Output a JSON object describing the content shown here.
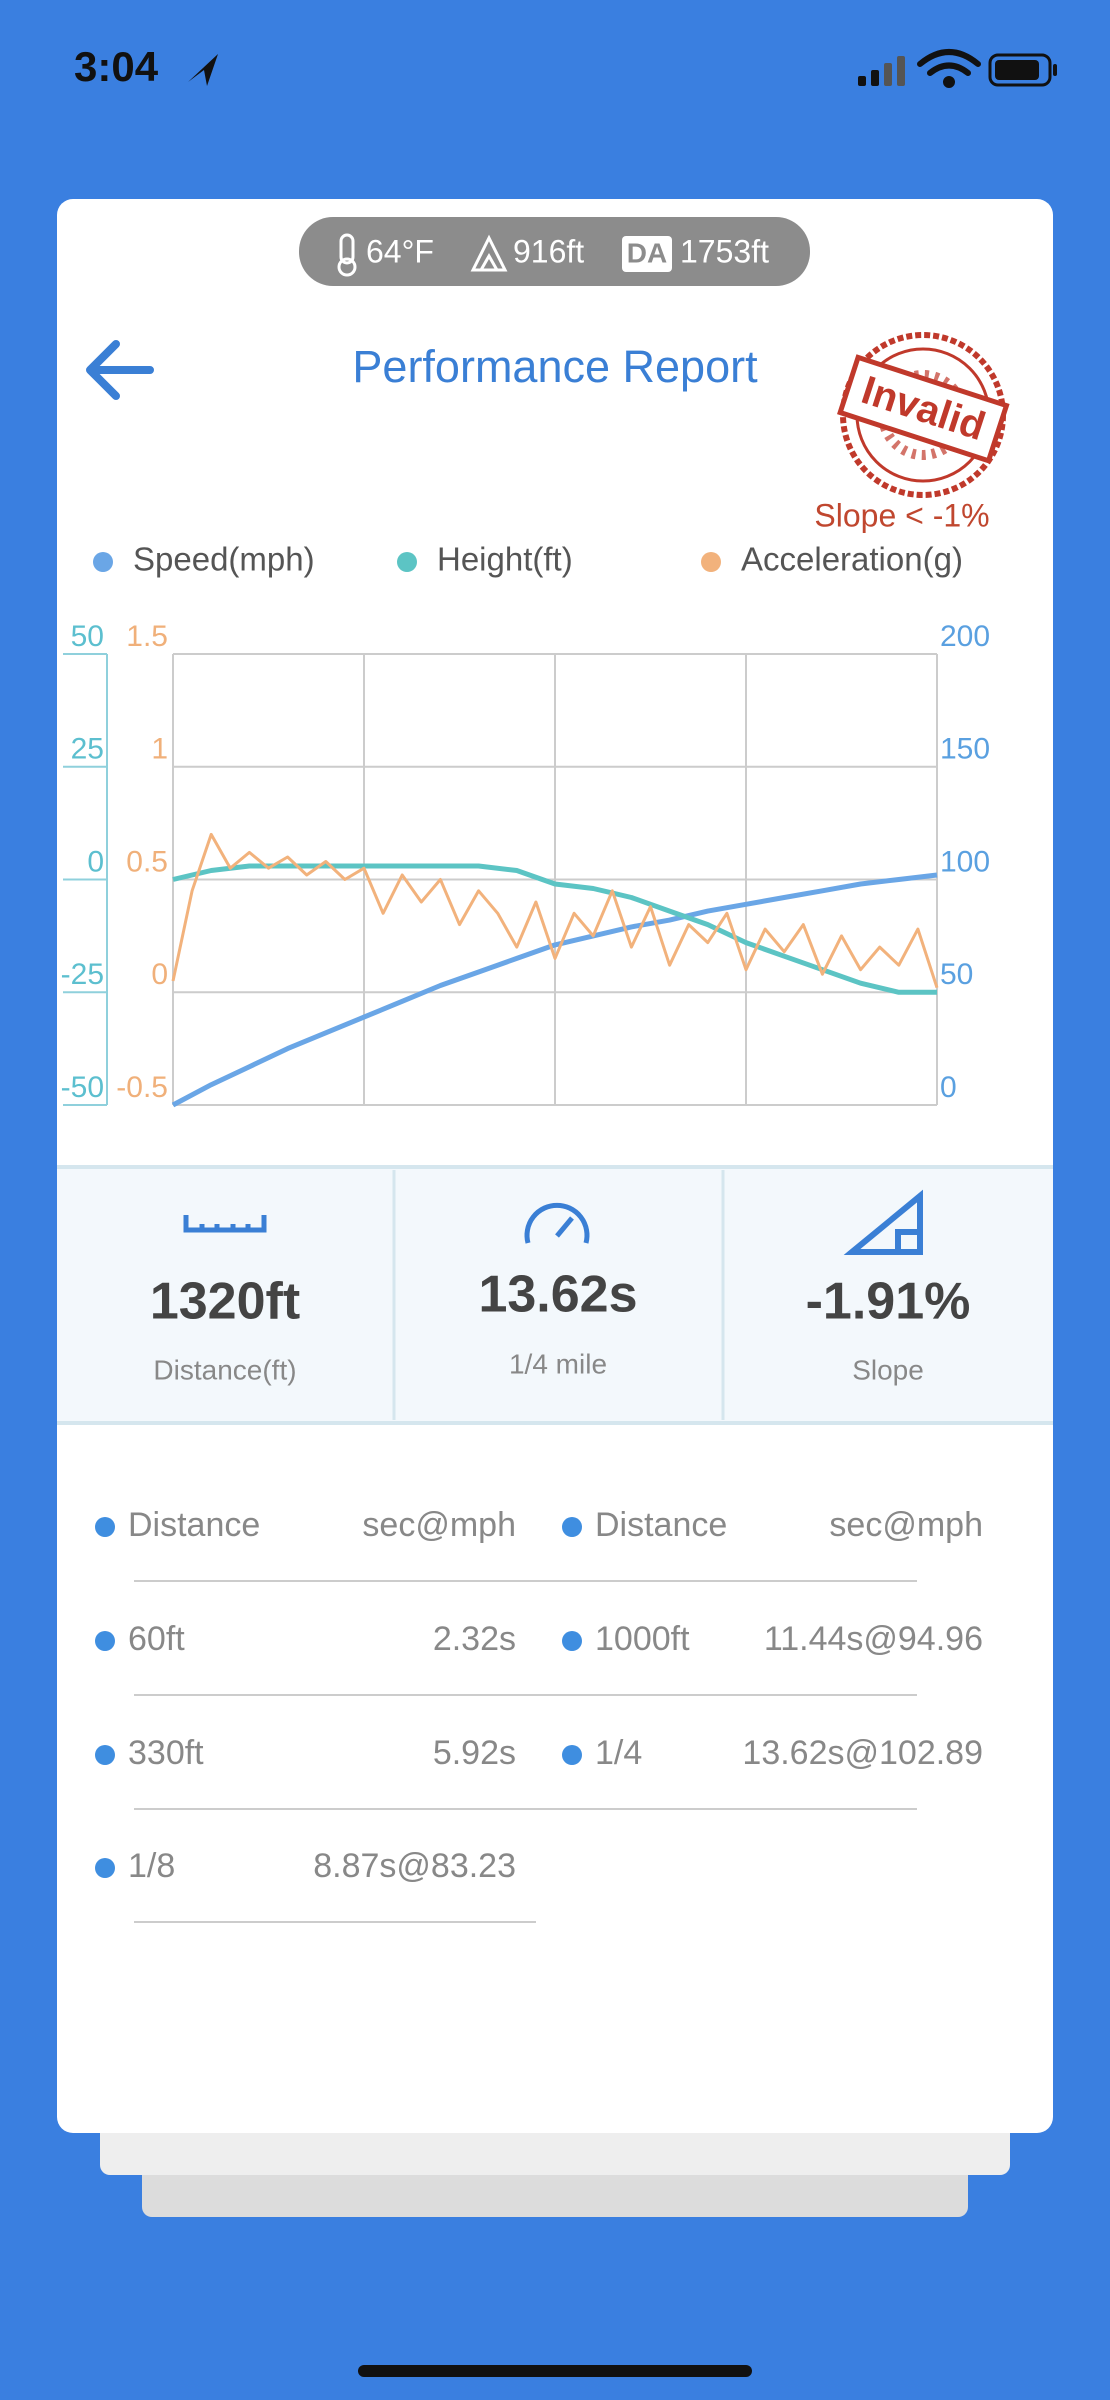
{
  "status_bar": {
    "time": "3:04"
  },
  "conditions": {
    "temperature": "64°F",
    "altitude": "916ft",
    "da_label": "DA",
    "density_altitude": "1753ft"
  },
  "header": {
    "title": "Performance Report"
  },
  "badge": {
    "stamp": "Invalid",
    "note": "Slope < -1%"
  },
  "chart_data": {
    "type": "line",
    "series": [
      {
        "name": "Speed(mph)",
        "color": "#6aa6e6",
        "axis": "y2",
        "values": [
          0,
          9,
          17,
          25,
          32,
          39,
          46,
          53,
          59,
          65,
          71,
          75,
          79,
          82,
          86,
          89,
          92,
          95,
          98,
          100,
          102
        ]
      },
      {
        "name": "Height(ft)",
        "color": "#5cc4c4",
        "values": [
          0,
          2,
          3,
          3,
          3,
          3,
          3,
          3,
          3,
          2,
          -1,
          -2,
          -4,
          -7,
          -10,
          -14,
          -17,
          -20,
          -23,
          -25,
          -25
        ]
      },
      {
        "name": "Acceleration(g)",
        "color": "#f2b27c",
        "axis": "y3",
        "values": [
          0.05,
          0.45,
          0.7,
          0.55,
          0.62,
          0.55,
          0.6,
          0.52,
          0.58,
          0.5,
          0.55,
          0.35,
          0.52,
          0.4,
          0.5,
          0.3,
          0.45,
          0.35,
          0.2,
          0.4,
          0.15,
          0.35,
          0.25,
          0.45,
          0.2,
          0.38,
          0.12,
          0.3,
          0.22,
          0.35,
          0.1,
          0.28,
          0.18,
          0.3,
          0.08,
          0.25,
          0.1,
          0.2,
          0.12,
          0.28,
          0.02
        ]
      }
    ],
    "ylim": [
      -50,
      50
    ],
    "yticks": [
      50,
      25,
      0,
      -25,
      -50
    ],
    "y2lim": [
      0,
      200
    ],
    "y2ticks": [
      200,
      150,
      100,
      50,
      0
    ],
    "y3lim": [
      -0.5,
      1.5
    ],
    "y3ticks": [
      1.5,
      1,
      0.5,
      0,
      -0.5
    ],
    "grid": true
  },
  "stats": [
    {
      "value": "1320ft",
      "label": "Distance(ft)"
    },
    {
      "value": "13.62s",
      "label": "1/4 mile"
    },
    {
      "value": "-1.91%",
      "label": "Slope"
    }
  ],
  "table": {
    "header": [
      "Distance",
      "sec@mph",
      "Distance",
      "sec@mph"
    ],
    "rows": [
      [
        "60ft",
        "2.32s",
        "1000ft",
        "11.44s@94.96"
      ],
      [
        "330ft",
        "5.92s",
        "1/4",
        "13.62s@102.89"
      ],
      [
        "1/8",
        "8.87s@83.23"
      ]
    ]
  }
}
